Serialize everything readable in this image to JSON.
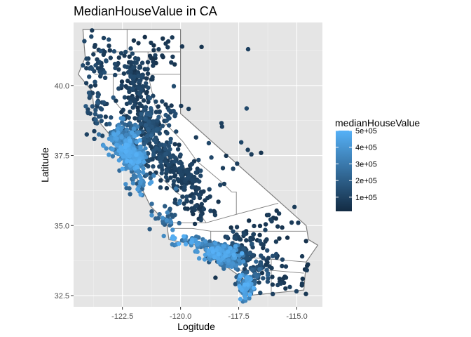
{
  "chart_data": {
    "type": "scatter",
    "title": "MedianHouseValue in CA",
    "xlabel": "Logitude",
    "ylabel": "Latitude",
    "xlim": [
      -124.6,
      -113.9
    ],
    "ylim": [
      32.1,
      42.25
    ],
    "x_ticks": [
      -122.5,
      -120.0,
      -117.5,
      -115.0
    ],
    "x_tick_labels": [
      "-122.5",
      "-120.0",
      "-117.5",
      "-115.0"
    ],
    "y_ticks": [
      32.5,
      35.0,
      37.5,
      40.0
    ],
    "y_tick_labels": [
      "32.5",
      "35.0",
      "37.5",
      "40.0"
    ],
    "grid": true,
    "panel_background": "#e5e5e5",
    "legend": {
      "title": "medianHouseValue",
      "placement": "right",
      "range": [
        15000,
        500000
      ],
      "breaks": [
        100000,
        200000,
        300000,
        400000,
        500000
      ],
      "labels": [
        "1e+05",
        "2e+05",
        "3e+05",
        "4e+05",
        "5e+05"
      ],
      "low_color": "#132b43",
      "high_color": "#56b1f7"
    },
    "colors": {
      "low": "#132b43",
      "high": "#56b1f7",
      "outline": "#7f7f7f"
    },
    "state_outline": [
      [
        -124.2,
        42.0
      ],
      [
        -120.0,
        42.0
      ],
      [
        -120.0,
        39.0
      ],
      [
        -114.6,
        35.0
      ],
      [
        -114.5,
        34.5
      ],
      [
        -114.1,
        34.3
      ],
      [
        -114.6,
        33.7
      ],
      [
        -114.7,
        32.7
      ],
      [
        -117.1,
        32.5
      ],
      [
        -117.3,
        33.1
      ],
      [
        -118.3,
        33.7
      ],
      [
        -118.5,
        34.0
      ],
      [
        -119.3,
        34.3
      ],
      [
        -120.5,
        34.5
      ],
      [
        -120.6,
        35.1
      ],
      [
        -121.3,
        35.7
      ],
      [
        -122.0,
        36.9
      ],
      [
        -122.5,
        37.6
      ],
      [
        -123.0,
        38.2
      ],
      [
        -123.7,
        38.9
      ],
      [
        -123.8,
        39.8
      ],
      [
        -124.4,
        40.4
      ],
      [
        -124.1,
        41.0
      ],
      [
        -124.2,
        42.0
      ]
    ],
    "county_lines": [
      [
        [
          -122.3,
          42.0
        ],
        [
          -122.3,
          41.2
        ],
        [
          -121.4,
          41.2
        ],
        [
          -121.4,
          40.4
        ]
      ],
      [
        [
          -123.8,
          41.2
        ],
        [
          -122.3,
          41.2
        ]
      ],
      [
        [
          -120.0,
          40.4
        ],
        [
          -123.7,
          40.4
        ]
      ],
      [
        [
          -121.4,
          41.2
        ],
        [
          -120.0,
          41.2
        ]
      ],
      [
        [
          -122.9,
          40.4
        ],
        [
          -122.9,
          39.5
        ],
        [
          -122.2,
          38.8
        ],
        [
          -122.0,
          38.2
        ]
      ],
      [
        [
          -121.4,
          40.4
        ],
        [
          -121.1,
          39.3
        ],
        [
          -120.6,
          38.6
        ],
        [
          -119.9,
          38.0
        ]
      ],
      [
        [
          -120.6,
          38.6
        ],
        [
          -121.5,
          38.4
        ],
        [
          -122.3,
          38.1
        ]
      ],
      [
        [
          -121.5,
          38.4
        ],
        [
          -121.2,
          37.7
        ],
        [
          -120.0,
          37.2
        ],
        [
          -119.2,
          36.6
        ]
      ],
      [
        [
          -119.9,
          38.0
        ],
        [
          -119.3,
          37.3
        ],
        [
          -118.3,
          36.6
        ],
        [
          -117.8,
          36.2
        ]
      ],
      [
        [
          -121.2,
          37.0
        ],
        [
          -120.2,
          36.2
        ],
        [
          -119.5,
          35.8
        ],
        [
          -118.9,
          35.1
        ]
      ],
      [
        [
          -120.6,
          35.1
        ],
        [
          -119.6,
          35.1
        ],
        [
          -118.9,
          35.1
        ],
        [
          -117.6,
          35.4
        ],
        [
          -115.8,
          35.8
        ]
      ],
      [
        [
          -120.3,
          34.9
        ],
        [
          -119.5,
          34.9
        ],
        [
          -118.7,
          34.8
        ],
        [
          -117.7,
          34.8
        ],
        [
          -114.6,
          34.8
        ]
      ],
      [
        [
          -118.7,
          34.8
        ],
        [
          -118.7,
          34.1
        ]
      ],
      [
        [
          -117.7,
          34.8
        ],
        [
          -117.7,
          33.9
        ],
        [
          -116.1,
          33.8
        ],
        [
          -114.6,
          33.7
        ]
      ],
      [
        [
          -117.7,
          33.9
        ],
        [
          -117.5,
          33.4
        ],
        [
          -116.1,
          33.4
        ],
        [
          -114.7,
          33.3
        ]
      ],
      [
        [
          -116.1,
          33.8
        ],
        [
          -116.1,
          32.6
        ]
      ],
      [
        [
          -117.6,
          35.4
        ],
        [
          -117.6,
          36.2
        ],
        [
          -117.8,
          36.2
        ]
      ]
    ],
    "clusters": [
      {
        "cx": -122.3,
        "cy": 37.75,
        "sx": 0.22,
        "sy": 0.3,
        "n": 170,
        "v": [
          260000,
          500000
        ]
      },
      {
        "cx": -121.95,
        "cy": 37.35,
        "sx": 0.2,
        "sy": 0.25,
        "n": 120,
        "v": [
          230000,
          500000
        ]
      },
      {
        "cx": -122.4,
        "cy": 38.3,
        "sx": 0.35,
        "sy": 0.25,
        "n": 70,
        "v": [
          150000,
          400000
        ]
      },
      {
        "cx": -122.8,
        "cy": 38.0,
        "sx": 0.25,
        "sy": 0.25,
        "n": 40,
        "v": [
          250000,
          480000
        ]
      },
      {
        "cx": -121.4,
        "cy": 38.6,
        "sx": 0.3,
        "sy": 0.3,
        "n": 110,
        "v": [
          60000,
          190000
        ]
      },
      {
        "cx": -121.9,
        "cy": 39.6,
        "sx": 0.4,
        "sy": 0.6,
        "n": 90,
        "v": [
          40000,
          130000
        ]
      },
      {
        "cx": -122.0,
        "cy": 40.5,
        "sx": 0.45,
        "sy": 0.4,
        "n": 70,
        "v": [
          40000,
          120000
        ]
      },
      {
        "cx": -123.6,
        "cy": 40.6,
        "sx": 0.35,
        "sy": 0.6,
        "n": 50,
        "v": [
          60000,
          150000
        ]
      },
      {
        "cx": -123.5,
        "cy": 39.2,
        "sx": 0.35,
        "sy": 0.5,
        "n": 40,
        "v": [
          60000,
          190000
        ]
      },
      {
        "cx": -121.0,
        "cy": 37.6,
        "sx": 0.35,
        "sy": 0.3,
        "n": 70,
        "v": [
          60000,
          160000
        ]
      },
      {
        "cx": -120.5,
        "cy": 37.1,
        "sx": 0.4,
        "sy": 0.35,
        "n": 60,
        "v": [
          50000,
          130000
        ]
      },
      {
        "cx": -119.8,
        "cy": 36.7,
        "sx": 0.35,
        "sy": 0.3,
        "n": 70,
        "v": [
          50000,
          120000
        ]
      },
      {
        "cx": -119.2,
        "cy": 35.9,
        "sx": 0.4,
        "sy": 0.4,
        "n": 50,
        "v": [
          40000,
          110000
        ]
      },
      {
        "cx": -121.7,
        "cy": 36.6,
        "sx": 0.25,
        "sy": 0.2,
        "n": 35,
        "v": [
          150000,
          450000
        ]
      },
      {
        "cx": -120.6,
        "cy": 35.3,
        "sx": 0.3,
        "sy": 0.3,
        "n": 35,
        "v": [
          150000,
          380000
        ]
      },
      {
        "cx": -119.8,
        "cy": 34.45,
        "sx": 0.4,
        "sy": 0.1,
        "n": 30,
        "v": [
          250000,
          500000
        ]
      },
      {
        "cx": -118.9,
        "cy": 34.25,
        "sx": 0.35,
        "sy": 0.12,
        "n": 45,
        "v": [
          200000,
          450000
        ]
      },
      {
        "cx": -118.3,
        "cy": 34.0,
        "sx": 0.3,
        "sy": 0.15,
        "n": 190,
        "v": [
          120000,
          500000
        ]
      },
      {
        "cx": -117.9,
        "cy": 33.75,
        "sx": 0.25,
        "sy": 0.15,
        "n": 100,
        "v": [
          180000,
          420000
        ]
      },
      {
        "cx": -117.4,
        "cy": 34.0,
        "sx": 0.35,
        "sy": 0.2,
        "n": 80,
        "v": [
          70000,
          170000
        ]
      },
      {
        "cx": -117.2,
        "cy": 32.85,
        "sx": 0.15,
        "sy": 0.2,
        "n": 90,
        "v": [
          150000,
          500000
        ]
      },
      {
        "cx": -116.9,
        "cy": 33.2,
        "sx": 0.35,
        "sy": 0.3,
        "n": 40,
        "v": [
          80000,
          250000
        ]
      },
      {
        "cx": -116.3,
        "cy": 33.7,
        "sx": 0.4,
        "sy": 0.25,
        "n": 30,
        "v": [
          50000,
          150000
        ]
      },
      {
        "cx": -117.5,
        "cy": 34.6,
        "sx": 0.5,
        "sy": 0.2,
        "n": 30,
        "v": [
          50000,
          130000
        ]
      },
      {
        "cx": -115.5,
        "cy": 32.9,
        "sx": 0.3,
        "sy": 0.2,
        "n": 15,
        "v": [
          40000,
          100000
        ]
      },
      {
        "cx": -118.3,
        "cy": 37.0,
        "sx": 1.0,
        "sy": 1.3,
        "n": 30,
        "v": [
          40000,
          130000
        ]
      },
      {
        "cx": -116.0,
        "cy": 35.0,
        "sx": 1.0,
        "sy": 0.5,
        "n": 25,
        "v": [
          30000,
          100000
        ]
      },
      {
        "cx": -121.0,
        "cy": 41.3,
        "sx": 0.9,
        "sy": 0.4,
        "n": 30,
        "v": [
          30000,
          90000
        ]
      },
      {
        "cx": -120.4,
        "cy": 38.9,
        "sx": 0.3,
        "sy": 0.3,
        "n": 20,
        "v": [
          60000,
          160000
        ]
      },
      {
        "cx": -114.7,
        "cy": 33.5,
        "sx": 0.15,
        "sy": 0.6,
        "n": 8,
        "v": [
          30000,
          80000
        ]
      }
    ]
  }
}
